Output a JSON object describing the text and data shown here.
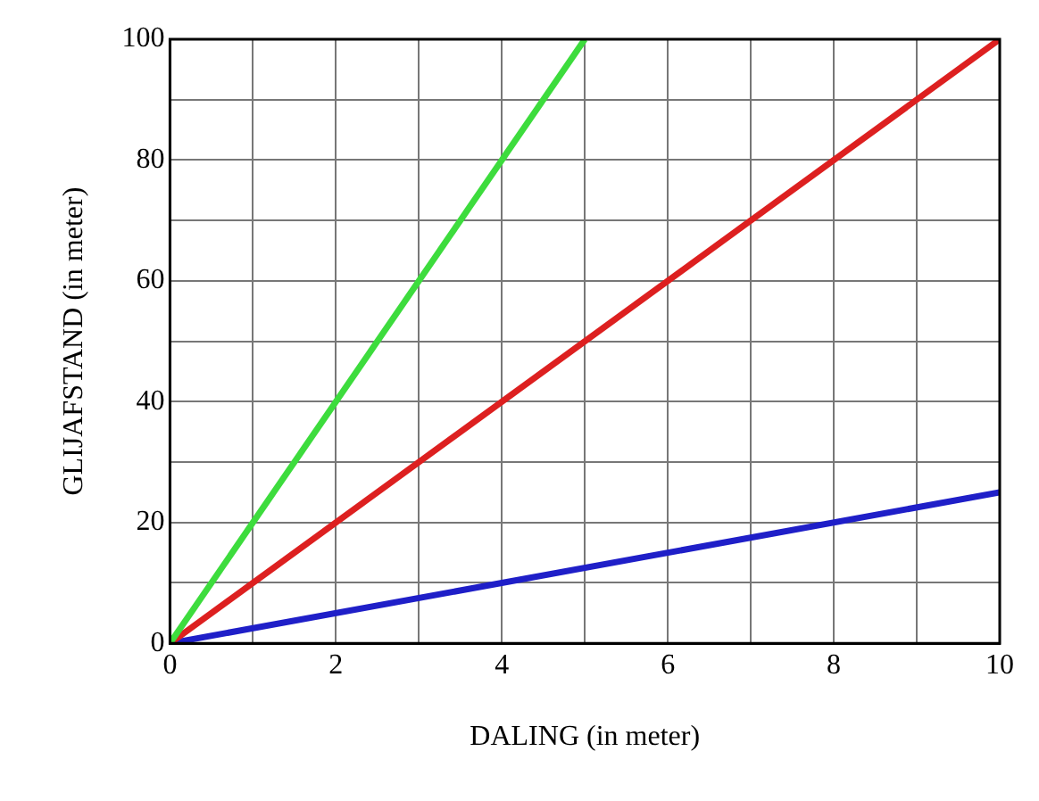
{
  "chart_data": {
    "type": "line",
    "xlabel": "DALING (in meter)",
    "ylabel": "GLIJAFSTAND (in meter)",
    "series": [
      {
        "color": "#3ddc3d",
        "x": [
          0,
          5
        ],
        "values": [
          0,
          100
        ]
      },
      {
        "color": "#dd2020",
        "x": [
          0,
          10
        ],
        "values": [
          0,
          100
        ]
      },
      {
        "color": "#1f1fc8",
        "x": [
          0,
          10
        ],
        "values": [
          0,
          25
        ]
      }
    ],
    "xlim": [
      0,
      10
    ],
    "ylim": [
      0,
      100
    ],
    "xticks": [
      0,
      {
        "value": 1,
        "label": null
      },
      2,
      {
        "value": 3,
        "label": null
      },
      4,
      {
        "value": 5,
        "label": null
      },
      6,
      {
        "value": 7,
        "label": null
      },
      8,
      {
        "value": 9,
        "label": null
      },
      10
    ],
    "yticks": [
      0,
      {
        "value": 10,
        "label": null
      },
      20,
      {
        "value": 30,
        "label": null
      },
      40,
      {
        "value": 50,
        "label": null
      },
      60,
      {
        "value": 70,
        "label": null
      },
      80,
      {
        "value": 90,
        "label": null
      },
      100
    ],
    "grid": true,
    "legend": false,
    "marker": "none",
    "line_style": "solid"
  }
}
